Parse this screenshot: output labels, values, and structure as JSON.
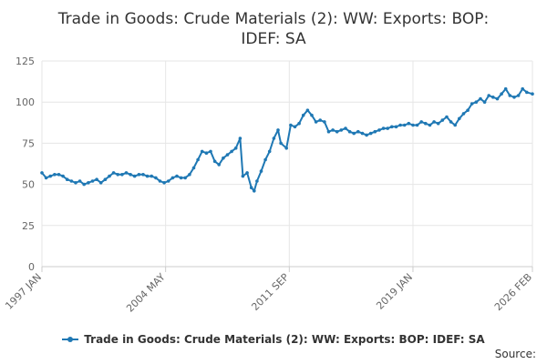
{
  "chart_data": {
    "type": "line",
    "title_lines": [
      "Trade in Goods: Crude Materials (2): WW: Exports: BOP:",
      "IDEF: SA"
    ],
    "xlabel": "",
    "ylabel": "",
    "ylim": [
      0,
      125
    ],
    "yticks": [
      "0",
      "25",
      "50",
      "75",
      "100",
      "125"
    ],
    "xlim": [
      "1997-01",
      "2026-02"
    ],
    "xticks": [
      {
        "label": "1997 JAN",
        "date": "1997-01"
      },
      {
        "label": "2004 MAY",
        "date": "2004-05"
      },
      {
        "label": "2011 SEP",
        "date": "2011-09"
      },
      {
        "label": "2019 JAN",
        "date": "2019-01"
      },
      {
        "label": "2026 FEB",
        "date": "2026-02"
      }
    ],
    "grid": true,
    "legend_position": "bottom",
    "series": [
      {
        "name": "Trade in Goods: Crude Materials (2): WW: Exports: BOP: IDEF: SA",
        "color": "#1f78b4",
        "points": [
          [
            "1997-01",
            57
          ],
          [
            "1997-04",
            54
          ],
          [
            "1997-07",
            55
          ],
          [
            "1997-10",
            56
          ],
          [
            "1998-01",
            56
          ],
          [
            "1998-04",
            55
          ],
          [
            "1998-07",
            53
          ],
          [
            "1998-10",
            52
          ],
          [
            "1999-01",
            51
          ],
          [
            "1999-04",
            52
          ],
          [
            "1999-07",
            50
          ],
          [
            "1999-10",
            51
          ],
          [
            "2000-01",
            52
          ],
          [
            "2000-04",
            53
          ],
          [
            "2000-07",
            51
          ],
          [
            "2000-10",
            53
          ],
          [
            "2001-01",
            55
          ],
          [
            "2001-04",
            57
          ],
          [
            "2001-07",
            56
          ],
          [
            "2001-10",
            56
          ],
          [
            "2002-01",
            57
          ],
          [
            "2002-04",
            56
          ],
          [
            "2002-07",
            55
          ],
          [
            "2002-10",
            56
          ],
          [
            "2003-01",
            56
          ],
          [
            "2003-04",
            55
          ],
          [
            "2003-07",
            55
          ],
          [
            "2003-10",
            54
          ],
          [
            "2004-01",
            52
          ],
          [
            "2004-04",
            51
          ],
          [
            "2004-07",
            52
          ],
          [
            "2004-10",
            54
          ],
          [
            "2005-01",
            55
          ],
          [
            "2005-04",
            54
          ],
          [
            "2005-07",
            54
          ],
          [
            "2005-10",
            56
          ],
          [
            "2006-01",
            60
          ],
          [
            "2006-04",
            65
          ],
          [
            "2006-07",
            70
          ],
          [
            "2006-10",
            69
          ],
          [
            "2007-01",
            70
          ],
          [
            "2007-04",
            64
          ],
          [
            "2007-07",
            62
          ],
          [
            "2007-10",
            66
          ],
          [
            "2008-01",
            68
          ],
          [
            "2008-04",
            70
          ],
          [
            "2008-07",
            72
          ],
          [
            "2008-10",
            78
          ],
          [
            "2008-12",
            55
          ],
          [
            "2009-03",
            57
          ],
          [
            "2009-06",
            48
          ],
          [
            "2009-08",
            46
          ],
          [
            "2009-10",
            52
          ],
          [
            "2010-01",
            58
          ],
          [
            "2010-04",
            65
          ],
          [
            "2010-07",
            70
          ],
          [
            "2010-10",
            78
          ],
          [
            "2011-01",
            83
          ],
          [
            "2011-03",
            75
          ],
          [
            "2011-07",
            72
          ],
          [
            "2011-10",
            86
          ],
          [
            "2012-01",
            85
          ],
          [
            "2012-04",
            87
          ],
          [
            "2012-07",
            92
          ],
          [
            "2012-10",
            95
          ],
          [
            "2013-01",
            92
          ],
          [
            "2013-04",
            88
          ],
          [
            "2013-07",
            89
          ],
          [
            "2013-10",
            88
          ],
          [
            "2014-01",
            82
          ],
          [
            "2014-04",
            83
          ],
          [
            "2014-07",
            82
          ],
          [
            "2014-10",
            83
          ],
          [
            "2015-01",
            84
          ],
          [
            "2015-04",
            82
          ],
          [
            "2015-07",
            81
          ],
          [
            "2015-10",
            82
          ],
          [
            "2016-01",
            81
          ],
          [
            "2016-04",
            80
          ],
          [
            "2016-07",
            81
          ],
          [
            "2016-10",
            82
          ],
          [
            "2017-01",
            83
          ],
          [
            "2017-04",
            84
          ],
          [
            "2017-07",
            84
          ],
          [
            "2017-10",
            85
          ],
          [
            "2018-01",
            85
          ],
          [
            "2018-04",
            86
          ],
          [
            "2018-07",
            86
          ],
          [
            "2018-10",
            87
          ],
          [
            "2019-01",
            86
          ],
          [
            "2019-04",
            86
          ],
          [
            "2019-07",
            88
          ],
          [
            "2019-10",
            87
          ],
          [
            "2020-01",
            86
          ],
          [
            "2020-04",
            88
          ],
          [
            "2020-07",
            87
          ],
          [
            "2020-10",
            89
          ],
          [
            "2021-01",
            91
          ],
          [
            "2021-04",
            88
          ],
          [
            "2021-07",
            86
          ],
          [
            "2021-10",
            90
          ],
          [
            "2022-01",
            93
          ],
          [
            "2022-04",
            95
          ],
          [
            "2022-07",
            99
          ],
          [
            "2022-10",
            100
          ],
          [
            "2023-01",
            102
          ],
          [
            "2023-04",
            100
          ],
          [
            "2023-07",
            104
          ],
          [
            "2023-10",
            103
          ],
          [
            "2024-01",
            102
          ],
          [
            "2024-04",
            105
          ],
          [
            "2024-07",
            108
          ],
          [
            "2024-10",
            104
          ],
          [
            "2025-01",
            103
          ],
          [
            "2025-04",
            104
          ],
          [
            "2025-07",
            108
          ],
          [
            "2025-10",
            106
          ],
          [
            "2026-02",
            105
          ]
        ]
      }
    ]
  },
  "legend": {
    "label": "Trade in Goods: Crude Materials (2): WW: Exports: BOP: IDEF: SA"
  },
  "source": {
    "label": "Source:"
  }
}
